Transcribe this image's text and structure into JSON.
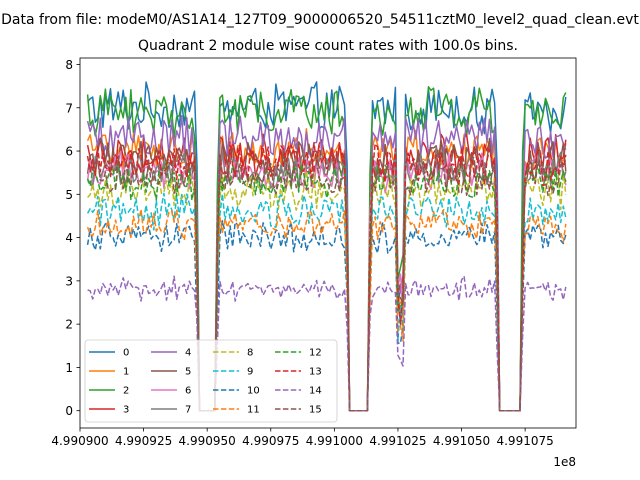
{
  "figure": {
    "suptitle": "Data from file: modeM0/AS1A14_127T09_9000006520_54511cztM0_level2_quad_clean.evt"
  },
  "chart_data": {
    "type": "line",
    "title": "Quadrant 2 module wise count rates with 100.0s bins.",
    "xlabel": "",
    "ylabel": "",
    "offset_text": "1e8",
    "xlim": [
      499090000,
      499109500
    ],
    "ylim": [
      -0.4,
      8.15
    ],
    "xticks": [
      499090000,
      499092500,
      499095000,
      499097500,
      499100000,
      499102500,
      499105000,
      499107500
    ],
    "xtick_labels": [
      "4.990900",
      "4.990925",
      "4.990950",
      "4.990975",
      "4.991000",
      "4.991025",
      "4.991050",
      "4.991075"
    ],
    "yticks": [
      0,
      1,
      2,
      3,
      4,
      5,
      6,
      7,
      8
    ],
    "ytick_labels": [
      "0",
      "1",
      "2",
      "3",
      "4",
      "5",
      "6",
      "7",
      "8"
    ],
    "bin_seconds": 100.0,
    "x_start": 499090300,
    "x_end": 499109100,
    "gaps": [
      {
        "start": 499094700,
        "end": 499095300
      },
      {
        "start": 499100600,
        "end": 499101300
      },
      {
        "start": 499106500,
        "end": 499107300
      }
    ],
    "dips": [
      499102600
    ],
    "legend_position": "lower-left",
    "grid": false,
    "series": [
      {
        "name": "0",
        "color": "#1f77b4",
        "dash": "solid",
        "level": 7.0
      },
      {
        "name": "1",
        "color": "#ff7f0e",
        "dash": "solid",
        "level": 6.0
      },
      {
        "name": "2",
        "color": "#2ca02c",
        "dash": "solid",
        "level": 6.9
      },
      {
        "name": "3",
        "color": "#d62728",
        "dash": "solid",
        "level": 5.9
      },
      {
        "name": "4",
        "color": "#9467bd",
        "dash": "solid",
        "level": 6.3
      },
      {
        "name": "5",
        "color": "#8c564b",
        "dash": "solid",
        "level": 5.8
      },
      {
        "name": "6",
        "color": "#e377c2",
        "dash": "solid",
        "level": 5.5
      },
      {
        "name": "7",
        "color": "#7f7f7f",
        "dash": "solid",
        "level": 5.6
      },
      {
        "name": "8",
        "color": "#bcbd22",
        "dash": "dashed",
        "level": 5.1
      },
      {
        "name": "9",
        "color": "#17becf",
        "dash": "dashed",
        "level": 4.6
      },
      {
        "name": "10",
        "color": "#1f77b4",
        "dash": "dashed",
        "level": 4.0
      },
      {
        "name": "11",
        "color": "#ff7f0e",
        "dash": "dashed",
        "level": 4.3
      },
      {
        "name": "12",
        "color": "#2ca02c",
        "dash": "dashed",
        "level": 5.3
      },
      {
        "name": "13",
        "color": "#d62728",
        "dash": "dashed",
        "level": 5.7
      },
      {
        "name": "14",
        "color": "#9467bd",
        "dash": "dashed",
        "level": 2.8
      },
      {
        "name": "15",
        "color": "#8c564b",
        "dash": "dashed",
        "level": 5.4
      }
    ]
  }
}
